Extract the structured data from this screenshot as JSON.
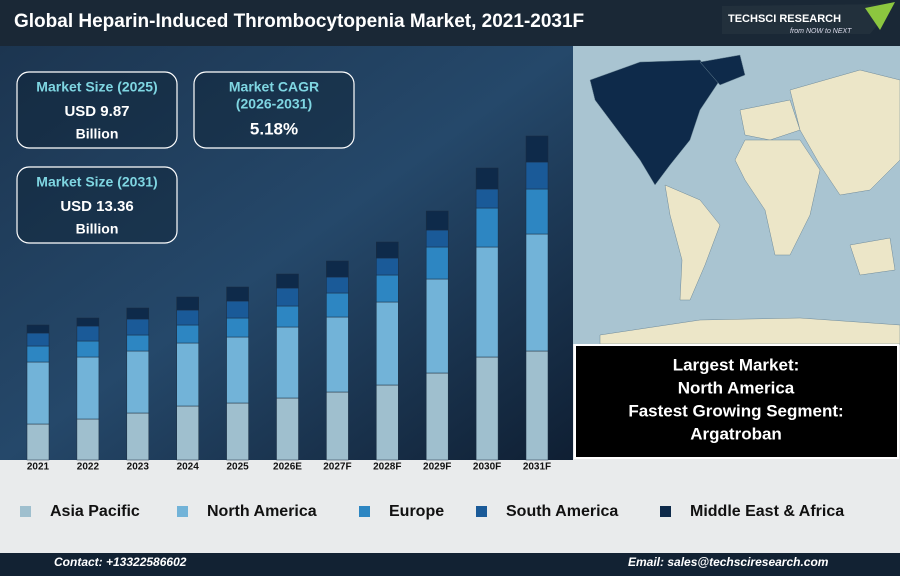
{
  "header": {
    "title": "Global Heparin-Induced Thrombocytopenia Market, 2021-2031F",
    "logo": "TECHSCI RESEARCH",
    "tagline": "from NOW to NEXT"
  },
  "stats": [
    {
      "label": "Market Size (2025)",
      "value": "USD 9.87",
      "unit": "Billion"
    },
    {
      "label": "Market CAGR",
      "sub": "(2026-2031)",
      "value": "5.18%"
    },
    {
      "label": "Market Size (2031)",
      "value": "USD 13.36",
      "unit": "Billion"
    }
  ],
  "highlights": [
    "Largest Market:",
    "North America",
    "Fastest Growing Segment:",
    "Argatroban"
  ],
  "footer": {
    "contact": "Contact: +13322586602",
    "email": "Email: sales@techsciresearch.com"
  },
  "chart_data": {
    "type": "stacked_bar",
    "categories": [
      "2021",
      "2022",
      "2023",
      "2024",
      "2025",
      "2026E",
      "2027F",
      "2028F",
      "2029F",
      "2030F",
      "2031F"
    ],
    "series": [
      {
        "name": "Asia Pacific",
        "color": "#9fbfce",
        "values": [
          36,
          41,
          47,
          54,
          57,
          62,
          68,
          75,
          87,
          103,
          109
        ]
      },
      {
        "name": "North America",
        "color": "#72b3d8",
        "values": [
          62,
          62,
          62,
          63,
          66,
          71,
          75,
          83,
          94,
          110,
          117
        ]
      },
      {
        "name": "Europe",
        "color": "#2d86c2",
        "values": [
          16,
          16,
          16,
          18,
          19,
          21,
          24,
          27,
          32,
          39,
          45
        ]
      },
      {
        "name": "South America",
        "color": "#1a5a98",
        "values": [
          13,
          15,
          16,
          15,
          17,
          18,
          16,
          17,
          17,
          19,
          27
        ]
      },
      {
        "name": "Middle East & Africa",
        "color": "#0e2a4a",
        "values": [
          8,
          8,
          11,
          13,
          14,
          14,
          16,
          16,
          19,
          21,
          26
        ]
      }
    ],
    "ylim": [
      0,
      330
    ]
  }
}
